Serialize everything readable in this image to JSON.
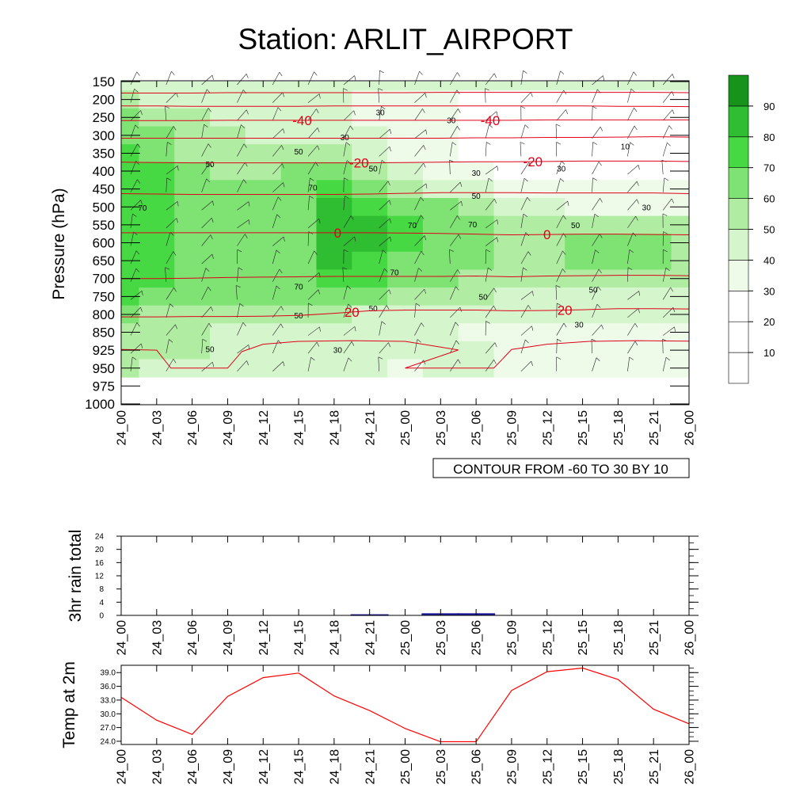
{
  "title": "Station: ARLIT_AIRPORT",
  "chart_data": [
    {
      "type": "heatmap",
      "ylabel": "Pressure (hPa)",
      "y_ticks": [
        "150",
        "200",
        "250",
        "300",
        "350",
        "400",
        "450",
        "500",
        "550",
        "600",
        "650",
        "700",
        "750",
        "800",
        "850",
        "925",
        "950",
        "975",
        "1000"
      ],
      "x_ticks": [
        "24_00",
        "24_03",
        "24_06",
        "24_09",
        "24_12",
        "24_15",
        "24_18",
        "24_21",
        "25_00",
        "25_03",
        "25_06",
        "25_09",
        "25_12",
        "25_15",
        "25_18",
        "25_21",
        "26_00"
      ],
      "note": "CONTOUR FROM -60 TO 30 BY 10",
      "fill_variable_levels": [
        10,
        20,
        30,
        40,
        50,
        60,
        70,
        80,
        90
      ],
      "fill_colors": [
        "#ffffff",
        "#ffffff",
        "#ffffff",
        "#eefbe9",
        "#d5f6cc",
        "#b0eda3",
        "#7ee373",
        "#47d943",
        "#2fbd31",
        "#17931c"
      ],
      "humidity_grid": [
        [
          40,
          40,
          40,
          40,
          40,
          40,
          40,
          40,
          40,
          40,
          40,
          40,
          40,
          40,
          40,
          40,
          40
        ],
        [
          50,
          45,
          45,
          40,
          40,
          40,
          40,
          35,
          30,
          30,
          25,
          25,
          25,
          20,
          20,
          20,
          20
        ],
        [
          60,
          55,
          50,
          45,
          40,
          40,
          40,
          35,
          30,
          30,
          25,
          20,
          20,
          20,
          20,
          20,
          20
        ],
        [
          65,
          60,
          55,
          50,
          45,
          40,
          40,
          40,
          35,
          30,
          25,
          20,
          20,
          20,
          20,
          20,
          20
        ],
        [
          70,
          65,
          55,
          50,
          50,
          55,
          50,
          40,
          35,
          30,
          25,
          20,
          20,
          20,
          20,
          20,
          20
        ],
        [
          70,
          70,
          60,
          55,
          55,
          60,
          60,
          50,
          40,
          35,
          30,
          25,
          20,
          20,
          20,
          25,
          25
        ],
        [
          75,
          70,
          65,
          60,
          60,
          65,
          75,
          60,
          50,
          40,
          40,
          30,
          30,
          30,
          30,
          30,
          30
        ],
        [
          75,
          70,
          65,
          65,
          65,
          68,
          80,
          75,
          65,
          60,
          55,
          40,
          40,
          35,
          35,
          35,
          35
        ],
        [
          70,
          70,
          65,
          65,
          65,
          65,
          85,
          80,
          70,
          68,
          65,
          55,
          50,
          50,
          55,
          55,
          55
        ],
        [
          70,
          70,
          65,
          65,
          65,
          65,
          85,
          80,
          70,
          68,
          65,
          58,
          55,
          60,
          62,
          60,
          55
        ],
        [
          70,
          70,
          65,
          65,
          65,
          65,
          82,
          75,
          68,
          65,
          62,
          58,
          55,
          62,
          62,
          60,
          55
        ],
        [
          75,
          70,
          65,
          65,
          65,
          62,
          70,
          70,
          65,
          60,
          55,
          52,
          50,
          55,
          55,
          50,
          50
        ],
        [
          70,
          65,
          60,
          60,
          60,
          60,
          60,
          60,
          55,
          55,
          50,
          45,
          45,
          45,
          45,
          45,
          45
        ],
        [
          60,
          55,
          50,
          50,
          50,
          50,
          50,
          45,
          45,
          45,
          40,
          40,
          40,
          40,
          40,
          40,
          40
        ],
        [
          55,
          50,
          50,
          45,
          45,
          45,
          45,
          45,
          40,
          40,
          35,
          35,
          35,
          35,
          35,
          35,
          35
        ],
        [
          55,
          50,
          50,
          45,
          45,
          45,
          40,
          40,
          40,
          40,
          40,
          35,
          35,
          35,
          30,
          30,
          30
        ],
        [
          50,
          45,
          45,
          45,
          45,
          40,
          40,
          40,
          35,
          40,
          40,
          35,
          30,
          30,
          30,
          30,
          30
        ],
        [
          null,
          null,
          null,
          null,
          null,
          null,
          null,
          null,
          null,
          null,
          null,
          null,
          null,
          null,
          null,
          null,
          null
        ],
        [
          null,
          null,
          null,
          null,
          null,
          null,
          null,
          null,
          null,
          null,
          null,
          null,
          null,
          null,
          null,
          null,
          null
        ]
      ],
      "contour_labels": [
        {
          "text": "30",
          "t": 7.3,
          "p": 235
        },
        {
          "text": "30",
          "t": 9.3,
          "p": 257
        },
        {
          "text": "30",
          "t": 6.3,
          "p": 305
        },
        {
          "text": "10",
          "t": 14.2,
          "p": 330
        },
        {
          "text": "50",
          "t": 5.0,
          "p": 345
        },
        {
          "text": "50",
          "t": 2.5,
          "p": 380
        },
        {
          "text": "50",
          "t": 7.1,
          "p": 392
        },
        {
          "text": "30",
          "t": 10.0,
          "p": 404
        },
        {
          "text": "30",
          "t": 12.4,
          "p": 392
        },
        {
          "text": "70",
          "t": 5.4,
          "p": 445
        },
        {
          "text": "50",
          "t": 10.0,
          "p": 468
        },
        {
          "text": "70",
          "t": 0.6,
          "p": 502
        },
        {
          "text": "30",
          "t": 14.8,
          "p": 500
        },
        {
          "text": "70",
          "t": 8.2,
          "p": 550
        },
        {
          "text": "70",
          "t": 9.9,
          "p": 548
        },
        {
          "text": "50",
          "t": 12.8,
          "p": 550
        },
        {
          "text": "70",
          "t": 7.7,
          "p": 682
        },
        {
          "text": "70",
          "t": 5.0,
          "p": 722
        },
        {
          "text": "50",
          "t": 13.3,
          "p": 731
        },
        {
          "text": "50",
          "t": 10.2,
          "p": 750
        },
        {
          "text": "50",
          "t": 7.1,
          "p": 782
        },
        {
          "text": "50",
          "t": 5.0,
          "p": 802
        },
        {
          "text": "30",
          "t": 12.9,
          "p": 828
        },
        {
          "text": "50",
          "t": 2.5,
          "p": 920
        },
        {
          "text": "30",
          "t": 6.1,
          "p": 922
        }
      ],
      "temperature_contours": [
        {
          "p": [
            182,
            182,
            182,
            181,
            181,
            181,
            181,
            181,
            181,
            180,
            180,
            180,
            180,
            180,
            180,
            180,
            181
          ]
        },
        {
          "p": [
            218,
            218,
            219,
            219,
            219,
            219,
            218,
            218,
            218,
            218,
            218,
            218,
            218,
            218,
            219,
            219,
            220
          ],
          "label": "",
          "lt": 0
        },
        {
          "p": [
            259,
            259,
            259,
            258,
            258,
            258,
            258,
            258,
            258,
            258,
            258,
            258,
            257,
            257,
            257,
            257,
            257
          ],
          "label": "-40",
          "lt": 5.1,
          "label2": "-40",
          "lt2": 10.4
        },
        {
          "p": [
            308,
            308,
            308,
            308,
            308,
            308,
            308,
            308,
            308,
            308,
            307,
            307,
            306,
            306,
            305,
            304,
            305
          ]
        },
        {
          "p": [
            375,
            376,
            377,
            377,
            377,
            377,
            377,
            377,
            376,
            375,
            374,
            374,
            373,
            372,
            372,
            372,
            373
          ],
          "label": "-20",
          "lt": 6.7,
          "label2": "-20",
          "lt2": 11.6
        },
        {
          "p": [
            463,
            464,
            465,
            465,
            465,
            465,
            465,
            464,
            462,
            460,
            460,
            460,
            461,
            461,
            461,
            461,
            463
          ]
        },
        {
          "p": [
            572,
            572,
            572,
            572,
            572,
            572,
            572,
            572,
            573,
            574,
            576,
            578,
            577,
            576,
            576,
            577,
            578
          ],
          "label": "0",
          "lt": 6.1,
          "label2": "0",
          "lt2": 12.0
        },
        {
          "p": [
            700,
            700,
            699,
            697,
            696,
            695,
            694,
            694,
            694,
            694,
            693,
            695,
            693,
            692,
            691,
            691,
            692
          ]
        },
        {
          "p": [
            807,
            807,
            806,
            806,
            805,
            803,
            797,
            790,
            788,
            788,
            788,
            790,
            789,
            787,
            784,
            784,
            785
          ],
          "label": "20",
          "lt": 6.5,
          "label2": "20",
          "lt2": 12.5
        }
      ],
      "near_surface_30_contour": [
        {
          "t": 0,
          "p": 922
        },
        {
          "t": 0.5,
          "p": 923
        },
        {
          "t": 1.0,
          "p": 925
        },
        {
          "t": 1.4,
          "p": 950
        },
        {
          "t": 3.0,
          "p": 950
        },
        {
          "t": 3.4,
          "p": 927
        },
        {
          "t": 4.0,
          "p": 900
        },
        {
          "t": 5.0,
          "p": 888
        },
        {
          "t": 6.5,
          "p": 885
        },
        {
          "t": 8.0,
          "p": 888
        },
        {
          "t": 9.5,
          "p": 924
        },
        {
          "t": 8.0,
          "p": 950
        },
        {
          "t": 10.5,
          "p": 950
        },
        {
          "t": 11.0,
          "p": 922
        },
        {
          "t": 12.0,
          "p": 900
        },
        {
          "t": 13.2,
          "p": 888
        },
        {
          "t": 14.5,
          "p": 885
        },
        {
          "t": 16,
          "p": 887
        }
      ],
      "wind_barbs": "dense field of barbs from roughly west-southwest to north-northeast"
    },
    {
      "type": "bar",
      "ylabel": "3hr rain total",
      "ylim": [
        0,
        24
      ],
      "y_ticks": [
        "0",
        "4",
        "8",
        "12",
        "16",
        "20",
        "24"
      ],
      "categories": [
        "24_00",
        "24_03",
        "24_06",
        "24_09",
        "24_12",
        "24_15",
        "24_18",
        "24_21",
        "25_00",
        "25_03",
        "25_06",
        "25_09",
        "25_12",
        "25_15",
        "25_18",
        "25_21",
        "26_00"
      ],
      "values": [
        0,
        0,
        0,
        0,
        0,
        0,
        0,
        0.1,
        0,
        0.4,
        0.4,
        0,
        0,
        0,
        0,
        0,
        0
      ],
      "bar_color": "#1a1a9a"
    },
    {
      "type": "line",
      "ylabel": "Temp at 2m",
      "ylim": [
        23.3,
        40.6
      ],
      "y_ticks": [
        "24.0",
        "27.0",
        "30.0",
        "33.0",
        "36.0",
        "39.0"
      ],
      "categories": [
        "24_00",
        "24_03",
        "24_06",
        "24_09",
        "24_12",
        "24_15",
        "24_18",
        "24_21",
        "25_00",
        "25_03",
        "25_06",
        "25_09",
        "25_12",
        "25_15",
        "25_18",
        "25_21",
        "26_00"
      ],
      "values": [
        33.6,
        28.6,
        25.5,
        33.8,
        37.9,
        38.9,
        33.9,
        30.7,
        26.8,
        23.9,
        23.9,
        35.1,
        39.2,
        40.0,
        37.5,
        31.0,
        27.8
      ],
      "line_color": "#ff0000"
    }
  ]
}
